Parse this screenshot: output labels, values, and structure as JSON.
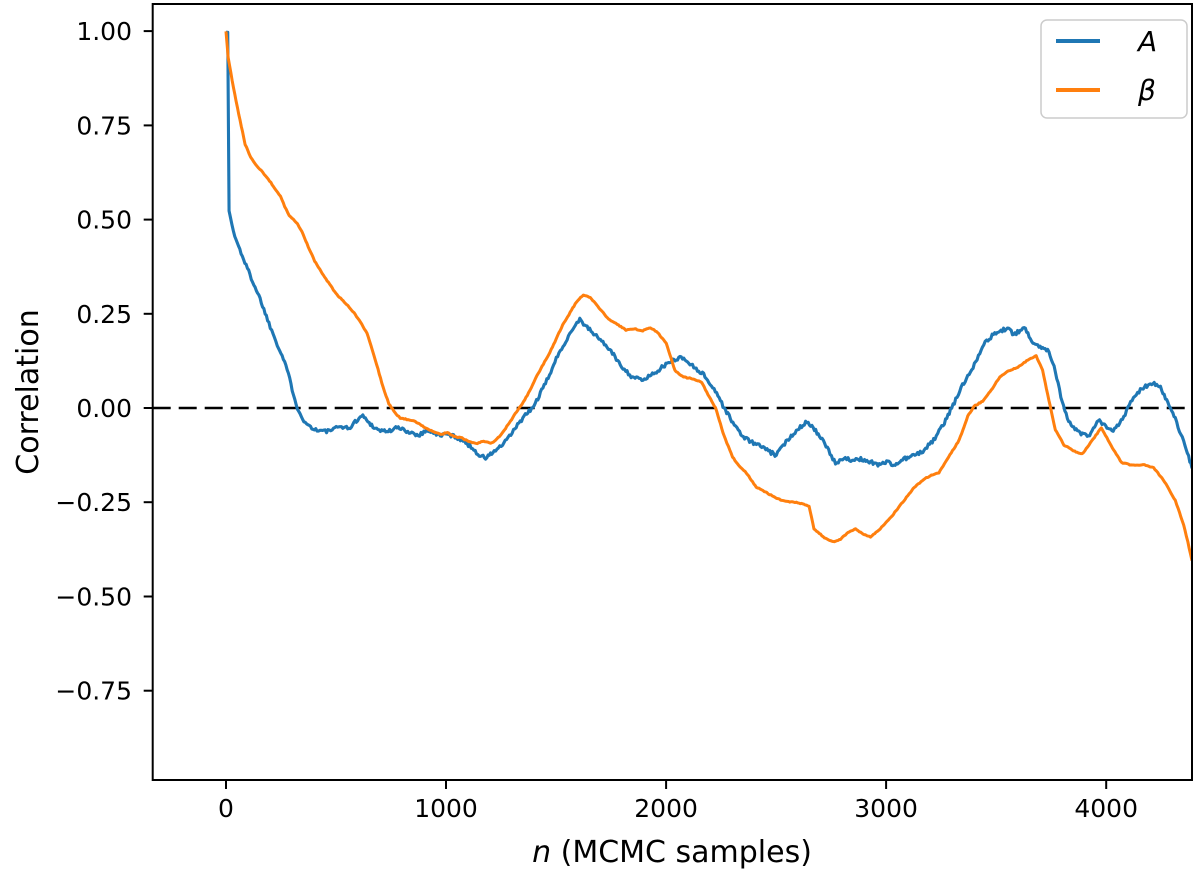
{
  "chart_data": {
    "type": "line",
    "title": "",
    "xlabel_italic": "n",
    "xlabel_rest": " (MCMC samples)",
    "ylabel": "Correlation",
    "xlim": [
      -333,
      4390
    ],
    "ylim": [
      -0.987,
      1.072
    ],
    "xticks": [
      0,
      1000,
      2000,
      3000,
      4000
    ],
    "xtick_labels": [
      "0",
      "1000",
      "2000",
      "3000",
      "4000"
    ],
    "yticks": [
      1.0,
      0.75,
      0.5,
      0.25,
      0.0,
      -0.25,
      -0.5,
      -0.75
    ],
    "ytick_labels": [
      "1.00",
      "0.75",
      "0.50",
      "0.25",
      "0.00",
      "−0.25",
      "−0.50",
      "−0.75"
    ],
    "grid": false,
    "legend": {
      "position": "upper right",
      "entries": [
        {
          "label": "A",
          "color": "#1f77b4"
        },
        {
          "label": "β",
          "color": "#ff7f0e"
        }
      ]
    },
    "zero_line": {
      "y": 0.0,
      "color": "#000000",
      "style": "dashed"
    },
    "series": [
      {
        "name": "A",
        "color": "#1f77b4",
        "line_width": 3.1,
        "noise": 0.005,
        "points": [
          [
            0,
            1.0
          ],
          [
            8,
            1.0
          ],
          [
            14,
            0.52
          ],
          [
            40,
            0.455
          ],
          [
            80,
            0.395
          ],
          [
            115,
            0.345
          ],
          [
            155,
            0.29
          ],
          [
            195,
            0.225
          ],
          [
            233,
            0.17
          ],
          [
            272,
            0.115
          ],
          [
            301,
            0.05
          ],
          [
            325,
            0.0
          ],
          [
            360,
            -0.04
          ],
          [
            408,
            -0.058
          ],
          [
            457,
            -0.062
          ],
          [
            495,
            -0.055
          ],
          [
            525,
            -0.048
          ],
          [
            559,
            -0.055
          ],
          [
            598,
            -0.03
          ],
          [
            622,
            -0.02
          ],
          [
            651,
            -0.04
          ],
          [
            690,
            -0.058
          ],
          [
            738,
            -0.062
          ],
          [
            777,
            -0.052
          ],
          [
            826,
            -0.062
          ],
          [
            874,
            -0.072
          ],
          [
            918,
            -0.058
          ],
          [
            962,
            -0.072
          ],
          [
            1010,
            -0.07
          ],
          [
            1059,
            -0.08
          ],
          [
            1108,
            -0.1
          ],
          [
            1151,
            -0.125
          ],
          [
            1180,
            -0.133
          ],
          [
            1219,
            -0.115
          ],
          [
            1263,
            -0.095
          ],
          [
            1307,
            -0.06
          ],
          [
            1355,
            -0.022
          ],
          [
            1394,
            0.0
          ],
          [
            1452,
            0.065
          ],
          [
            1501,
            0.13
          ],
          [
            1550,
            0.185
          ],
          [
            1588,
            0.222
          ],
          [
            1608,
            0.235
          ],
          [
            1647,
            0.21
          ],
          [
            1695,
            0.185
          ],
          [
            1744,
            0.155
          ],
          [
            1792,
            0.115
          ],
          [
            1841,
            0.085
          ],
          [
            1890,
            0.073
          ],
          [
            1938,
            0.09
          ],
          [
            1987,
            0.11
          ],
          [
            2035,
            0.128
          ],
          [
            2069,
            0.135
          ],
          [
            2103,
            0.12
          ],
          [
            2137,
            0.105
          ],
          [
            2171,
            0.088
          ],
          [
            2200,
            0.065
          ],
          [
            2230,
            0.04
          ],
          [
            2264,
            0.0
          ],
          [
            2298,
            -0.033
          ],
          [
            2340,
            -0.07
          ],
          [
            2385,
            -0.09
          ],
          [
            2429,
            -0.1
          ],
          [
            2465,
            -0.115
          ],
          [
            2501,
            -0.125
          ],
          [
            2545,
            -0.09
          ],
          [
            2574,
            -0.07
          ],
          [
            2610,
            -0.05
          ],
          [
            2640,
            -0.035
          ],
          [
            2680,
            -0.06
          ],
          [
            2715,
            -0.09
          ],
          [
            2745,
            -0.12
          ],
          [
            2770,
            -0.148
          ],
          [
            2808,
            -0.13
          ],
          [
            2846,
            -0.142
          ],
          [
            2885,
            -0.135
          ],
          [
            2924,
            -0.142
          ],
          [
            2963,
            -0.15
          ],
          [
            3002,
            -0.143
          ],
          [
            3041,
            -0.152
          ],
          [
            3080,
            -0.135
          ],
          [
            3119,
            -0.128
          ],
          [
            3167,
            -0.115
          ],
          [
            3216,
            -0.085
          ],
          [
            3259,
            -0.045
          ],
          [
            3298,
            0.0
          ],
          [
            3347,
            0.06
          ],
          [
            3395,
            0.11
          ],
          [
            3444,
            0.17
          ],
          [
            3488,
            0.195
          ],
          [
            3522,
            0.205
          ],
          [
            3551,
            0.212
          ],
          [
            3580,
            0.195
          ],
          [
            3609,
            0.205
          ],
          [
            3633,
            0.21
          ],
          [
            3667,
            0.175
          ],
          [
            3706,
            0.16
          ],
          [
            3740,
            0.152
          ],
          [
            3769,
            0.1
          ],
          [
            3794,
            0.03
          ],
          [
            3818,
            -0.018
          ],
          [
            3847,
            -0.052
          ],
          [
            3886,
            -0.068
          ],
          [
            3925,
            -0.076
          ],
          [
            3964,
            -0.032
          ],
          [
            3998,
            -0.05
          ],
          [
            4032,
            -0.062
          ],
          [
            4080,
            -0.022
          ],
          [
            4124,
            0.03
          ],
          [
            4168,
            0.055
          ],
          [
            4207,
            0.065
          ],
          [
            4241,
            0.06
          ],
          [
            4275,
            0.02
          ],
          [
            4314,
            -0.03
          ],
          [
            4352,
            -0.09
          ],
          [
            4380,
            -0.14
          ],
          [
            4390,
            -0.16
          ]
        ]
      },
      {
        "name": "β",
        "color": "#ff7f0e",
        "line_width": 3.0,
        "noise": 0.0012,
        "points": [
          [
            0,
            1.0
          ],
          [
            10,
            0.93
          ],
          [
            34,
            0.85
          ],
          [
            58,
            0.78
          ],
          [
            87,
            0.7
          ],
          [
            112,
            0.665
          ],
          [
            136,
            0.645
          ],
          [
            160,
            0.63
          ],
          [
            180,
            0.615
          ],
          [
            204,
            0.598
          ],
          [
            228,
            0.578
          ],
          [
            248,
            0.562
          ],
          [
            267,
            0.535
          ],
          [
            287,
            0.512
          ],
          [
            306,
            0.5
          ],
          [
            325,
            0.488
          ],
          [
            345,
            0.468
          ],
          [
            374,
            0.428
          ],
          [
            403,
            0.39
          ],
          [
            437,
            0.358
          ],
          [
            471,
            0.328
          ],
          [
            505,
            0.3
          ],
          [
            532,
            0.285
          ],
          [
            554,
            0.272
          ],
          [
            588,
            0.248
          ],
          [
            617,
            0.222
          ],
          [
            641,
            0.198
          ],
          [
            665,
            0.155
          ],
          [
            685,
            0.115
          ],
          [
            714,
            0.055
          ],
          [
            740,
            0.012
          ],
          [
            768,
            -0.012
          ],
          [
            792,
            -0.027
          ],
          [
            821,
            -0.03
          ],
          [
            860,
            -0.036
          ],
          [
            899,
            -0.05
          ],
          [
            938,
            -0.062
          ],
          [
            976,
            -0.07
          ],
          [
            1006,
            -0.065
          ],
          [
            1035,
            -0.075
          ],
          [
            1073,
            -0.08
          ],
          [
            1107,
            -0.09
          ],
          [
            1137,
            -0.095
          ],
          [
            1171,
            -0.088
          ],
          [
            1209,
            -0.093
          ],
          [
            1248,
            -0.073
          ],
          [
            1287,
            -0.04
          ],
          [
            1326,
            -0.005
          ],
          [
            1346,
            0.01
          ],
          [
            1375,
            0.04
          ],
          [
            1413,
            0.085
          ],
          [
            1472,
            0.148
          ],
          [
            1530,
            0.22
          ],
          [
            1593,
            0.282
          ],
          [
            1624,
            0.3
          ],
          [
            1656,
            0.293
          ],
          [
            1690,
            0.27
          ],
          [
            1739,
            0.235
          ],
          [
            1778,
            0.222
          ],
          [
            1817,
            0.207
          ],
          [
            1856,
            0.21
          ],
          [
            1894,
            0.205
          ],
          [
            1929,
            0.213
          ],
          [
            1962,
            0.2
          ],
          [
            2001,
            0.172
          ],
          [
            2040,
            0.1
          ],
          [
            2079,
            0.082
          ],
          [
            2118,
            0.078
          ],
          [
            2162,
            0.068
          ],
          [
            2196,
            0.03
          ],
          [
            2225,
            0.0
          ],
          [
            2264,
            -0.075
          ],
          [
            2302,
            -0.13
          ],
          [
            2341,
            -0.16
          ],
          [
            2365,
            -0.172
          ],
          [
            2410,
            -0.21
          ],
          [
            2458,
            -0.225
          ],
          [
            2502,
            -0.24
          ],
          [
            2545,
            -0.248
          ],
          [
            2592,
            -0.25
          ],
          [
            2650,
            -0.26
          ],
          [
            2672,
            -0.32
          ],
          [
            2720,
            -0.345
          ],
          [
            2759,
            -0.355
          ],
          [
            2793,
            -0.348
          ],
          [
            2827,
            -0.33
          ],
          [
            2861,
            -0.32
          ],
          [
            2895,
            -0.335
          ],
          [
            2929,
            -0.342
          ],
          [
            2973,
            -0.32
          ],
          [
            3022,
            -0.29
          ],
          [
            3075,
            -0.25
          ],
          [
            3128,
            -0.21
          ],
          [
            3177,
            -0.187
          ],
          [
            3211,
            -0.177
          ],
          [
            3240,
            -0.172
          ],
          [
            3284,
            -0.13
          ],
          [
            3332,
            -0.085
          ],
          [
            3371,
            -0.022
          ],
          [
            3400,
            0.005
          ],
          [
            3439,
            0.018
          ],
          [
            3478,
            0.048
          ],
          [
            3517,
            0.083
          ],
          [
            3556,
            0.098
          ],
          [
            3599,
            0.108
          ],
          [
            3638,
            0.125
          ],
          [
            3682,
            0.138
          ],
          [
            3711,
            0.1
          ],
          [
            3740,
            0.02
          ],
          [
            3769,
            -0.058
          ],
          [
            3808,
            -0.098
          ],
          [
            3857,
            -0.115
          ],
          [
            3891,
            -0.122
          ],
          [
            3934,
            -0.088
          ],
          [
            3978,
            -0.052
          ],
          [
            4022,
            -0.1
          ],
          [
            4070,
            -0.145
          ],
          [
            4119,
            -0.152
          ],
          [
            4168,
            -0.15
          ],
          [
            4216,
            -0.158
          ],
          [
            4265,
            -0.195
          ],
          [
            4314,
            -0.245
          ],
          [
            4352,
            -0.31
          ],
          [
            4371,
            -0.355
          ],
          [
            4390,
            -0.405
          ]
        ]
      }
    ]
  },
  "colors": {
    "background": "#ffffff",
    "axis": "#000000",
    "text": "#000000",
    "legend_border": "#cccccc"
  }
}
